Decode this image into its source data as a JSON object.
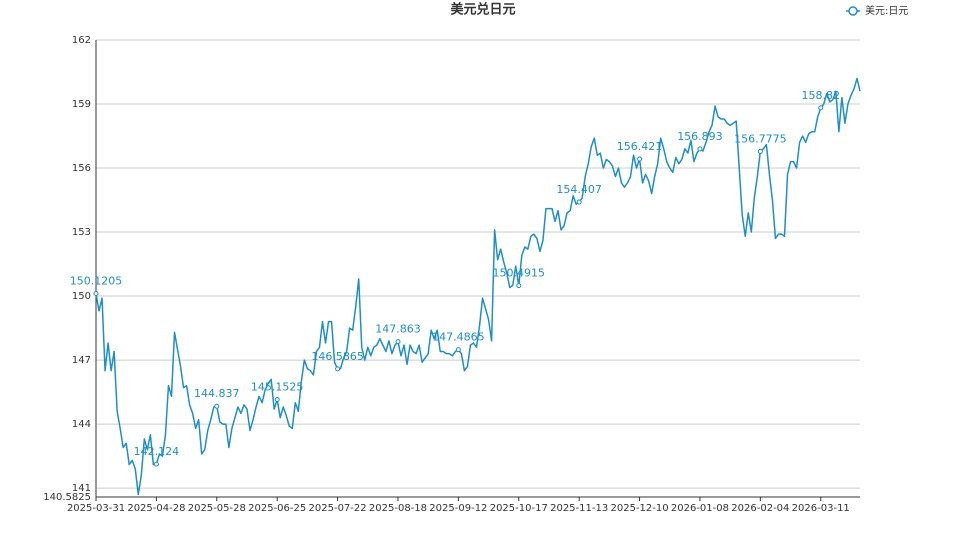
{
  "chart_data": {
    "type": "line",
    "title": "美元兑日元",
    "categories": [
      "2025-03-31",
      null,
      null,
      null,
      null,
      null,
      null,
      null,
      null,
      null,
      null,
      null,
      null,
      null,
      null,
      null,
      null,
      null,
      null,
      null,
      "2025-04-28",
      null,
      null,
      null,
      null,
      null,
      null,
      null,
      null,
      null,
      null,
      null,
      null,
      null,
      null,
      null,
      null,
      null,
      null,
      null,
      "2025-05-28",
      null,
      null,
      null,
      null,
      null,
      null,
      null,
      null,
      null,
      null,
      null,
      null,
      null,
      null,
      null,
      null,
      null,
      null,
      null,
      "2025-06-25",
      null,
      null,
      null,
      null,
      null,
      null,
      null,
      null,
      null,
      null,
      null,
      null,
      null,
      null,
      null,
      null,
      null,
      null,
      null,
      "2025-07-22",
      null,
      null,
      null,
      null,
      null,
      null,
      null,
      null,
      null,
      null,
      null,
      null,
      null,
      null,
      null,
      null,
      null,
      null,
      null,
      "2025-08-18",
      null,
      null,
      null,
      null,
      null,
      null,
      null,
      null,
      null,
      null,
      null,
      null,
      null,
      null,
      null,
      null,
      null,
      null,
      null,
      "2025-09-12",
      null,
      null,
      null,
      null,
      null,
      null,
      null,
      null,
      null,
      null,
      null,
      null,
      null,
      null,
      null,
      null,
      null,
      null,
      null,
      "2025-10-17",
      null,
      null,
      null,
      null,
      null,
      null,
      null,
      null,
      null,
      null,
      null,
      null,
      null,
      null,
      null,
      null,
      null,
      null,
      null,
      "2025-11-13",
      null,
      null,
      null,
      null,
      null,
      null,
      null,
      null,
      null,
      null,
      null,
      null,
      null,
      null,
      null,
      null,
      null,
      null,
      null,
      "2025-12-10",
      null,
      null,
      null,
      null,
      null,
      null,
      null,
      null,
      null,
      null,
      null,
      null,
      null,
      null,
      null,
      null,
      null,
      null,
      null,
      "2026-01-08",
      null,
      null,
      null,
      null,
      null,
      null,
      null,
      null,
      null,
      null,
      null,
      null,
      null,
      null,
      null,
      null,
      null,
      null,
      null,
      "2026-02-04",
      null,
      null,
      null,
      null,
      null,
      null,
      null,
      null,
      null,
      null,
      null,
      null,
      null,
      null,
      null,
      null,
      null,
      null,
      null,
      "2026-03-11",
      null,
      null,
      null,
      null,
      null,
      null,
      null,
      null,
      null,
      null,
      null,
      null,
      null
    ],
    "series": [
      {
        "name": "美元:日元",
        "color": "#1f8ec7",
        "values": [
          150.1205,
          149.3,
          149.9,
          146.5,
          147.8,
          146.5,
          147.4,
          144.6,
          143.8,
          142.9,
          143.1,
          142.1,
          142.3,
          141.9,
          140.7,
          141.6,
          143.3,
          142.8,
          143.5,
          142.1,
          142.124,
          142.6,
          142.5,
          143.5,
          145.8,
          145.3,
          148.3,
          147.5,
          146.7,
          145.7,
          145.8,
          144.9,
          144.5,
          143.8,
          144.2,
          142.6,
          142.8,
          143.7,
          144.2,
          144.8,
          144.837,
          144.1,
          144.0,
          144.0,
          142.9,
          143.8,
          144.3,
          144.8,
          144.5,
          144.9,
          144.7,
          143.7,
          144.2,
          144.8,
          145.3,
          145.0,
          145.6,
          145.9,
          146.1,
          144.7,
          145.1525,
          144.3,
          144.8,
          144.4,
          143.9,
          143.8,
          145.0,
          144.6,
          146.0,
          147.0,
          146.6,
          146.5,
          146.3,
          147.4,
          147.6,
          148.8,
          147.8,
          148.8,
          148.8,
          146.9,
          146.5865,
          146.6,
          147.1,
          147.4,
          148.5,
          148.4,
          149.5,
          150.8,
          147.6,
          147.0,
          147.6,
          147.2,
          147.6,
          147.7,
          148.0,
          147.7,
          147.4,
          147.9,
          147.3,
          147.7,
          147.863,
          147.2,
          147.7,
          146.8,
          147.7,
          147.4,
          147.3,
          147.7,
          146.9,
          147.1,
          147.3,
          148.4,
          148.0,
          148.4,
          147.4,
          147.4,
          147.3,
          147.3,
          147.2,
          147.4,
          147.4865,
          147.3,
          146.5,
          146.7,
          147.7,
          147.8,
          147.6,
          148.6,
          149.9,
          149.4,
          148.9,
          147.9,
          153.1,
          151.7,
          152.2,
          151.6,
          151.1,
          150.4,
          150.5,
          151.4,
          150.4915,
          151.9,
          152.3,
          152.2,
          152.8,
          152.9,
          152.7,
          152.1,
          152.6,
          154.1,
          154.1,
          154.1,
          153.5,
          154.0,
          153.1,
          153.3,
          153.9,
          154.0,
          154.7,
          154.3,
          154.407,
          154.6,
          155.6,
          156.2,
          157.0,
          157.4,
          156.6,
          156.7,
          156.0,
          156.4,
          156.3,
          156.1,
          155.6,
          156.0,
          155.3,
          155.1,
          155.3,
          155.6,
          156.6,
          156.0,
          156.421,
          155.3,
          155.7,
          155.4,
          154.8,
          155.6,
          156.2,
          157.4,
          156.9,
          156.3,
          156.0,
          155.8,
          156.5,
          156.2,
          156.4,
          156.9,
          156.7,
          157.3,
          156.3,
          156.7,
          156.893,
          156.8,
          157.2,
          157.7,
          158.0,
          158.9,
          158.4,
          158.3,
          158.3,
          158.1,
          158.0,
          158.1,
          158.2,
          156.0,
          153.8,
          152.8,
          153.9,
          153.0,
          154.6,
          155.6,
          156.7775,
          156.9,
          157.1,
          155.7,
          154.5,
          152.7,
          152.9,
          152.9,
          152.8,
          155.7,
          156.3,
          156.3,
          156.0,
          157.2,
          157.5,
          157.2,
          157.6,
          157.7,
          157.7,
          158.4,
          158.82,
          159.0,
          159.5,
          159.1,
          159.2,
          159.6,
          157.7,
          159.3,
          158.1,
          159.0,
          159.4,
          159.7,
          160.2,
          159.6
        ]
      }
    ],
    "ylim": [
      140.5825,
      162
    ],
    "yticks": [
      140.5825,
      141,
      144,
      147,
      150,
      153,
      156,
      159,
      162
    ],
    "grid": true,
    "legend": "top-right"
  }
}
